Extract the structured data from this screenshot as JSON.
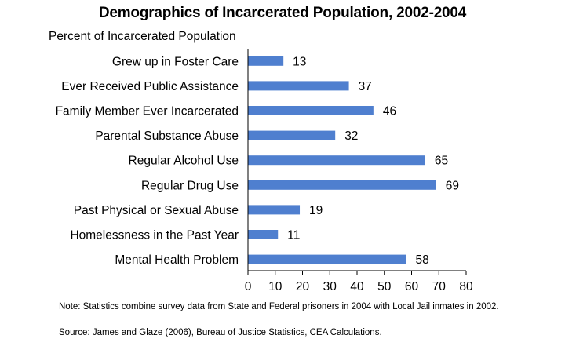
{
  "chart_data": {
    "type": "bar",
    "orientation": "horizontal",
    "title": "Demographics of Incarcerated Population, 2002-2004",
    "ylabel": "Percent of Incarcerated Population",
    "categories": [
      "Grew up in Foster Care",
      "Ever Received Public Assistance",
      "Family Member Ever Incarcerated",
      "Parental Substance Abuse",
      "Regular Alcohol Use",
      "Regular Drug Use",
      "Past Physical or Sexual Abuse",
      "Homelessness in the Past Year",
      "Mental Health Problem"
    ],
    "values": [
      13,
      37,
      46,
      32,
      65,
      69,
      19,
      11,
      58
    ],
    "xlim": [
      0,
      80
    ],
    "xticks": [
      0,
      10,
      20,
      30,
      40,
      50,
      60,
      70,
      80
    ],
    "bar_color": "#4f7fcf",
    "grid": false,
    "data_labels": true
  },
  "notes": {
    "line1": "Note: Statistics combine survey data from State and Federal prisoners in 2004 with Local Jail inmates in 2002.",
    "line2": "Source: James and Glaze (2006), Bureau of Justice Statistics, CEA Calculations."
  }
}
